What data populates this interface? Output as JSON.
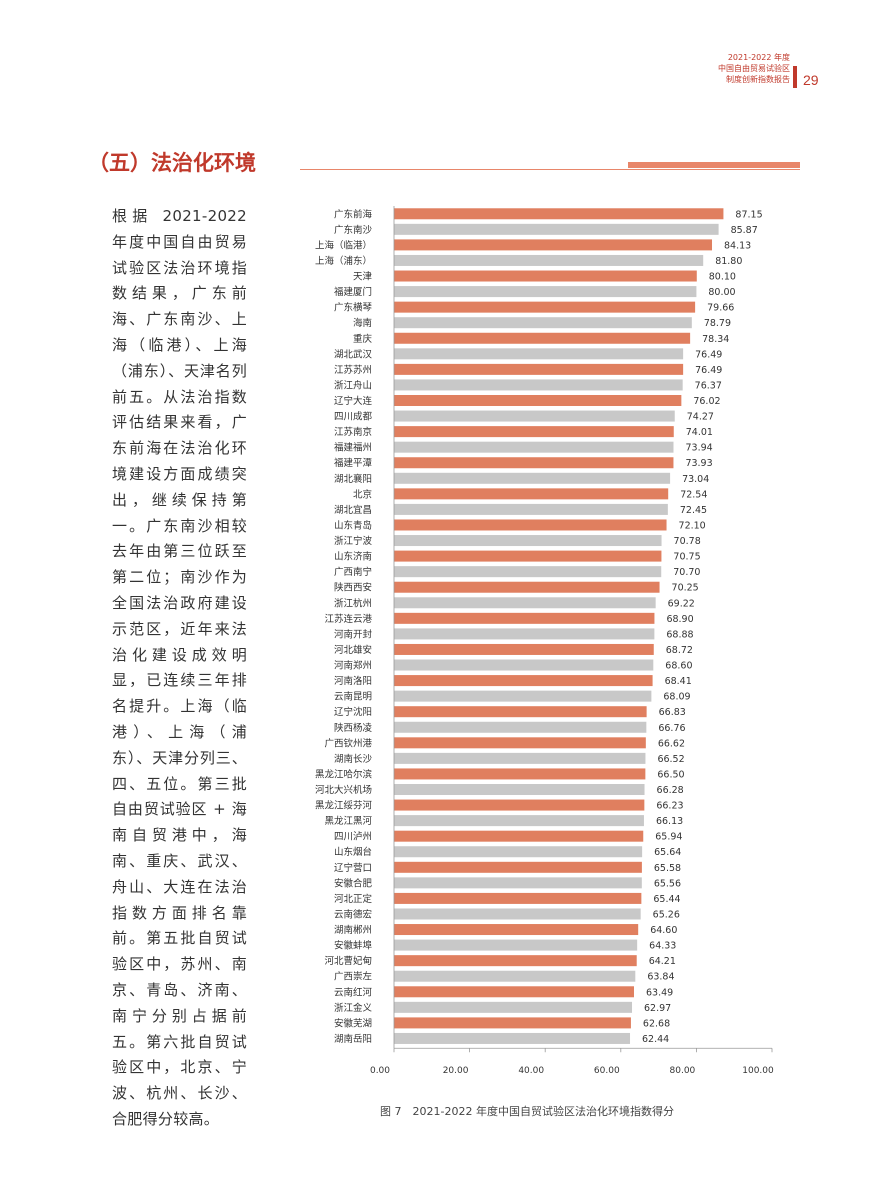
{
  "header": {
    "lines": [
      "2021-2022 年度",
      "中国自由贸易试验区",
      "制度创新指数报告"
    ],
    "page_number": "29"
  },
  "section": {
    "title": "（五）法治化环境"
  },
  "body_text": "根据 2021-2022 年度中国自由贸易试验区法治环境指数结果，广东前海、广东南沙、上海（临港）、上海（浦东）、天津名列前五。从法治指数评估结果来看，广东前海在法治化环境建设方面成绩突出，继续保持第一。广东南沙相较去年由第三位跃至第二位；南沙作为全国法治政府建设示范区，近年来法治化建设成效明显，已连续三年排名提升。上海（临港）、上海（浦东）、天津分列三、四、五位。第三批自由贸试验区 + 海南自贸港中，海南、重庆、武汉、舟山、大连在法治指数方面排名靠前。第五批自贸试验区中，苏州、南京、青岛、济南、南宁分别占据前五。第六批自贸试验区中，北京、宁波、杭州、长沙、合肥得分较高。",
  "colors": {
    "accent": "#c0392b",
    "bar_orange": "#e07f5f",
    "bar_gray": "#c8c8c8"
  },
  "chart_data": {
    "type": "bar",
    "orientation": "horizontal",
    "categories": [
      "广东前海",
      "广东南沙",
      "上海（临港）",
      "上海（浦东）",
      "天津",
      "福建厦门",
      "广东横琴",
      "海南",
      "重庆",
      "湖北武汉",
      "江苏苏州",
      "浙江舟山",
      "辽宁大连",
      "四川成都",
      "江苏南京",
      "福建福州",
      "福建平潭",
      "湖北襄阳",
      "北京",
      "湖北宜昌",
      "山东青岛",
      "浙江宁波",
      "山东济南",
      "广西南宁",
      "陕西西安",
      "浙江杭州",
      "江苏连云港",
      "河南开封",
      "河北雄安",
      "河南郑州",
      "河南洛阳",
      "云南昆明",
      "辽宁沈阳",
      "陕西杨凌",
      "广西钦州港",
      "湖南长沙",
      "黑龙江哈尔滨",
      "河北大兴机场",
      "黑龙江绥芬河",
      "黑龙江黑河",
      "四川泸州",
      "山东烟台",
      "辽宁营口",
      "安徽合肥",
      "河北正定",
      "云南德宏",
      "湖南郴州",
      "安徽蚌埠",
      "河北曹妃甸",
      "广西崇左",
      "云南红河",
      "浙江金义",
      "安徽芜湖",
      "湖南岳阳"
    ],
    "values": [
      87.15,
      85.87,
      84.13,
      81.8,
      80.1,
      80.0,
      79.66,
      78.79,
      78.34,
      76.49,
      76.49,
      76.37,
      76.02,
      74.27,
      74.01,
      73.94,
      73.93,
      73.04,
      72.54,
      72.45,
      72.1,
      70.78,
      70.75,
      70.7,
      70.25,
      69.22,
      68.9,
      68.88,
      68.72,
      68.6,
      68.41,
      68.09,
      66.83,
      66.76,
      66.62,
      66.52,
      66.5,
      66.28,
      66.23,
      66.13,
      65.94,
      65.64,
      65.58,
      65.56,
      65.44,
      65.26,
      64.6,
      64.33,
      64.21,
      63.84,
      63.49,
      62.97,
      62.68,
      62.44
    ],
    "value_labels": [
      "87.15",
      "85.87",
      "84.13",
      "81.80",
      "80.10",
      "80.00",
      "79.66",
      "78.79",
      "78.34",
      "76.49",
      "76.49",
      "76.37",
      "76.02",
      "74.27",
      "74.01",
      "73.94",
      "73.93",
      "73.04",
      "72.54",
      "72.45",
      "72.10",
      "70.78",
      "70.75",
      "70.70",
      "70.25",
      "69.22",
      "68.90",
      "68.88",
      "68.72",
      "68.60",
      "68.41",
      "68.09",
      "66.83",
      "66.76",
      "66.62",
      "66.52",
      "66.50",
      "66.28",
      "66.23",
      "66.13",
      "65.94",
      "65.64",
      "65.58",
      "65.56",
      "65.44",
      "65.26",
      "64.60",
      "64.33",
      "64.21",
      "63.84",
      "63.49",
      "62.97",
      "62.68",
      "62.44"
    ],
    "xlim": [
      0,
      100
    ],
    "xticks": [
      "0.00",
      "20.00",
      "40.00",
      "60.00",
      "80.00",
      "100.00"
    ],
    "bar_colors_alternating": [
      "#e07f5f",
      "#c8c8c8"
    ],
    "grid": false
  },
  "caption": "图 7　2021-2022 年度中国自贸试验区法治化环境指数得分"
}
